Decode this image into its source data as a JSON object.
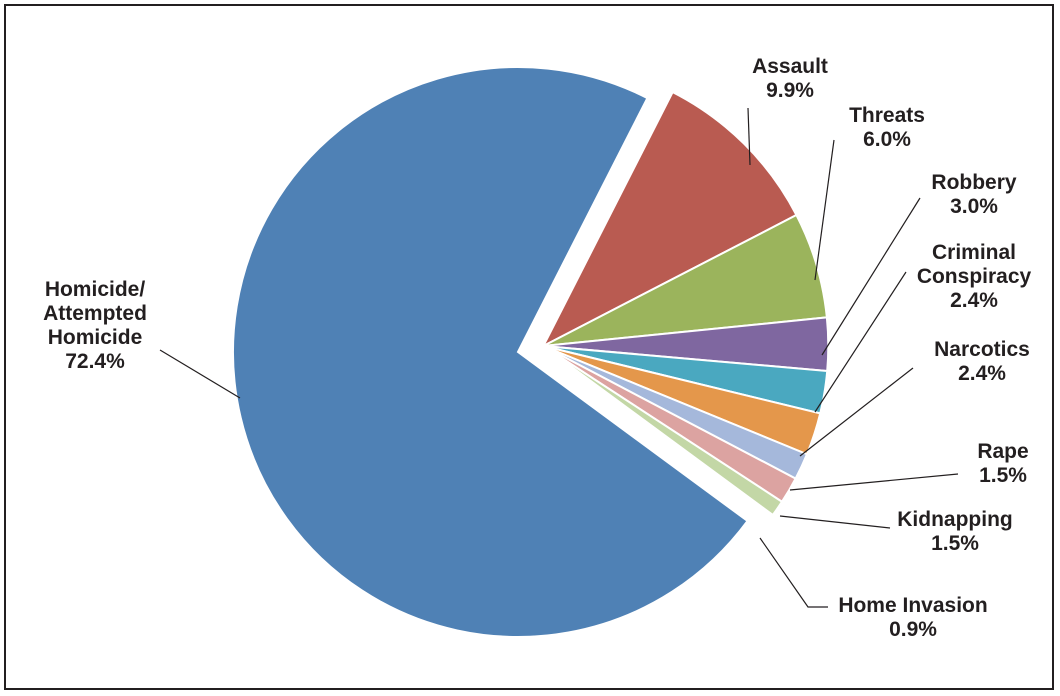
{
  "chart_data": {
    "type": "pie",
    "title": "",
    "slices": [
      {
        "name_lines": [
          "Homicide/",
          "Attempted",
          "Homicide"
        ],
        "value_label": "72.4%",
        "value": 72.4,
        "color": "#4f81b5"
      },
      {
        "name_lines": [
          "Assault"
        ],
        "value_label": "9.9%",
        "value": 9.9,
        "color": "#b95b51"
      },
      {
        "name_lines": [
          "Threats"
        ],
        "value_label": "6.0%",
        "value": 6.0,
        "color": "#9bb45c"
      },
      {
        "name_lines": [
          "Robbery"
        ],
        "value_label": "3.0%",
        "value": 3.0,
        "color": "#7f67a0"
      },
      {
        "name_lines": [
          "Criminal",
          "Conspiracy"
        ],
        "value_label": "2.4%",
        "value": 2.4,
        "color": "#4aa8c0"
      },
      {
        "name_lines": [
          "Narcotics"
        ],
        "value_label": "2.4%",
        "value": 2.4,
        "color": "#e4974b"
      },
      {
        "name_lines": [
          "Rape"
        ],
        "value_label": "1.5%",
        "value": 1.5,
        "color": "#a5b8db"
      },
      {
        "name_lines": [
          "Kidnapping"
        ],
        "value_label": "1.5%",
        "value": 1.5,
        "color": "#dca3a1"
      },
      {
        "name_lines": [
          "Home Invasion"
        ],
        "value_label": "0.9%",
        "value": 0.9,
        "color": "#c3d7a6"
      }
    ],
    "exploded": "all slices except Homicide/Attempted Homicide",
    "legend": "none",
    "start": "Homicide/Attempted Homicide slice starts at 1 o'clock and runs counter-clockwise"
  }
}
